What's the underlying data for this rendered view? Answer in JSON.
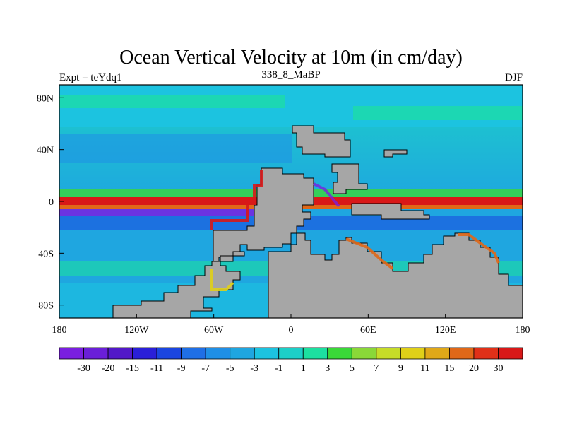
{
  "chart_data": {
    "type": "heatmap",
    "title": "Ocean Vertical Velocity at 10m (in cm/day)",
    "left_string": "Expt = teYdq1",
    "center_string": "338_8_MaBP",
    "right_string": "DJF",
    "x_ticks": [
      "180",
      "120W",
      "60W",
      "0",
      "60E",
      "120E",
      "180"
    ],
    "x_tick_values": [
      -180,
      -120,
      -60,
      0,
      60,
      120,
      180
    ],
    "y_ticks": [
      "80N",
      "40N",
      "0",
      "40S",
      "80S"
    ],
    "y_tick_values": [
      80,
      40,
      0,
      -40,
      -80
    ],
    "xlim": [
      -180,
      180
    ],
    "ylim": [
      -90,
      90
    ],
    "colorbar": {
      "labels": [
        "-30",
        "-20",
        "-15",
        "-11",
        "-9",
        "-7",
        "-5",
        "-3",
        "-1",
        "1",
        "3",
        "5",
        "7",
        "9",
        "11",
        "15",
        "20",
        "30"
      ],
      "colors": [
        "#7a1fe0",
        "#6a1fd8",
        "#5218c8",
        "#2a1fd8",
        "#1a45e0",
        "#1f6fe6",
        "#1f8fe6",
        "#1fa6e0",
        "#1cc3e0",
        "#1ccfc8",
        "#1ce0a0",
        "#3ad838",
        "#8ad838",
        "#c6dc28",
        "#e0d018",
        "#e0a818",
        "#e06818",
        "#e03018",
        "#d81818"
      ]
    }
  }
}
